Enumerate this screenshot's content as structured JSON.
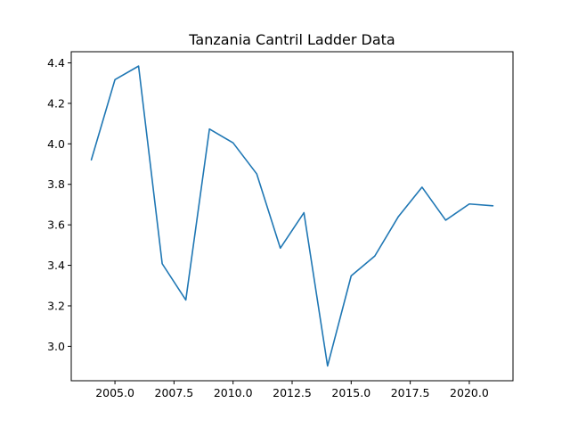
{
  "chart_data": {
    "type": "line",
    "title": "Tanzania Cantril Ladder Data",
    "xlabel": "",
    "ylabel": "",
    "xlim": [
      2003.15,
      2021.85
    ],
    "ylim": [
      2.83,
      4.455
    ],
    "grid": false,
    "legend": "none",
    "line_color": "#1f77b4",
    "x_ticks": [
      2005.0,
      2007.5,
      2010.0,
      2012.5,
      2015.0,
      2017.5,
      2020.0
    ],
    "x_tick_labels": [
      "2005.0",
      "2007.5",
      "2010.0",
      "2012.5",
      "2015.0",
      "2017.5",
      "2020.0"
    ],
    "y_ticks": [
      3.0,
      3.2,
      3.4,
      3.6,
      3.8,
      4.0,
      4.2,
      4.4
    ],
    "y_tick_labels": [
      "3.0",
      "3.2",
      "3.4",
      "3.6",
      "3.8",
      "4.0",
      "4.2",
      "4.4"
    ],
    "series": [
      {
        "x": [
          2004,
          2005,
          2006,
          2007,
          2008,
          2009,
          2010,
          2011,
          2012,
          2013,
          2014,
          2015,
          2016,
          2017,
          2018,
          2019,
          2020,
          2021
        ],
        "values": [
          3.921,
          4.317,
          4.384,
          3.408,
          3.229,
          4.073,
          4.005,
          3.852,
          3.485,
          3.66,
          2.903,
          3.348,
          3.446,
          3.641,
          3.786,
          3.623,
          3.703,
          3.694
        ]
      }
    ]
  }
}
